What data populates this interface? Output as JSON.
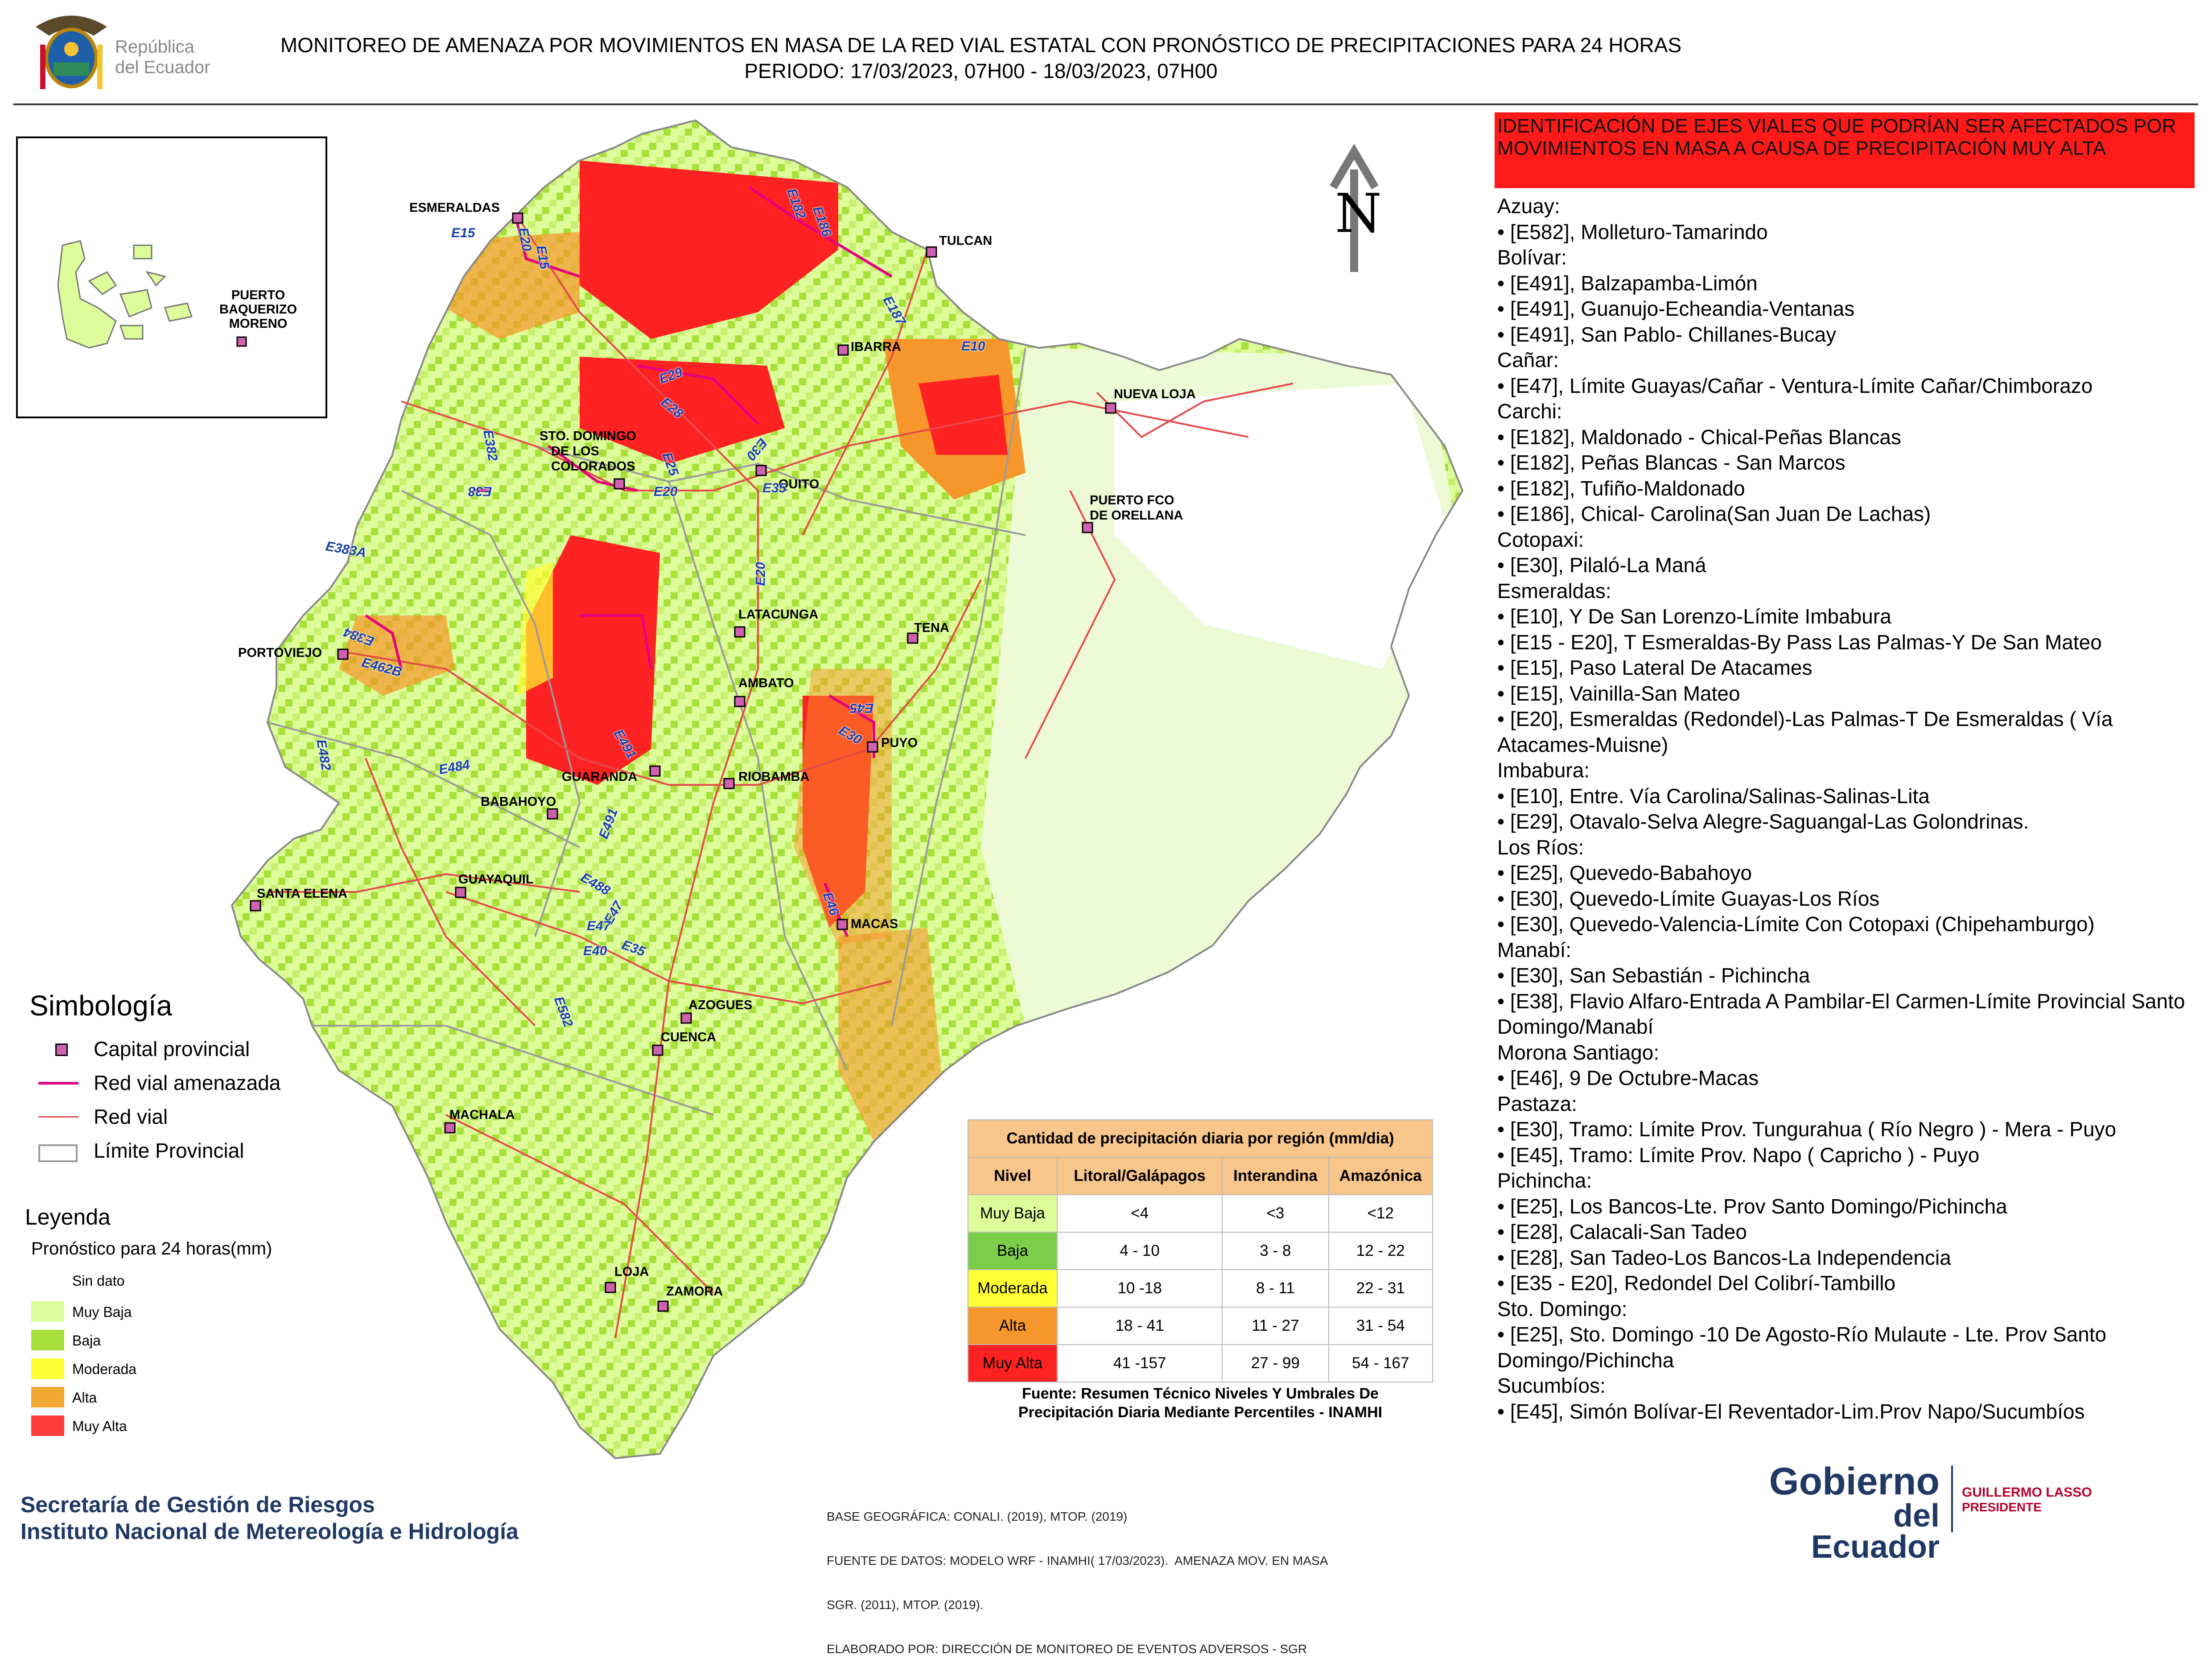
{
  "header": {
    "title_line1": "MONITOREO DE AMENAZA POR MOVIMIENTOS EN MASA DE LA RED VIAL  ESTATAL  CON PRONÓSTICO  DE  PRECIPITACIONES PARA 24 HORAS",
    "title_line2": "PERIODO: 17/03/2023, 07H00 - 18/03/2023, 07H00"
  },
  "logo": {
    "text_line1": "República",
    "text_line2": "del Ecuador"
  },
  "north_label": "N",
  "map": {
    "cities": [
      {
        "name": "ESMERALDAS"
      },
      {
        "name": "TULCAN"
      },
      {
        "name": "IBARRA"
      },
      {
        "name": "NUEVA LOJA"
      },
      {
        "name": "STO. DOMINGO"
      },
      {
        "name": "DE LOS"
      },
      {
        "name": "COLORADOS"
      },
      {
        "name": "QUITO"
      },
      {
        "name": "PUERTO FCO"
      },
      {
        "name": "DE ORELLANA"
      },
      {
        "name": "LATACUNGA"
      },
      {
        "name": "TENA"
      },
      {
        "name": "PORTOVIEJO"
      },
      {
        "name": "AMBATO"
      },
      {
        "name": "PUYO"
      },
      {
        "name": "GUARANDA"
      },
      {
        "name": "RIOBAMBA"
      },
      {
        "name": "BABAHOYO"
      },
      {
        "name": "SANTA ELENA"
      },
      {
        "name": "GUAYAQUIL"
      },
      {
        "name": "MACAS"
      },
      {
        "name": "AZOGUES"
      },
      {
        "name": "CUENCA"
      },
      {
        "name": "MACHALA"
      },
      {
        "name": "LOJA"
      },
      {
        "name": "ZAMORA"
      }
    ],
    "roads": [
      "E15",
      "E20",
      "E15",
      "E182",
      "E186",
      "E187",
      "E10",
      "E29",
      "E28",
      "E382",
      "E25",
      "E20",
      "E38",
      "E35",
      "E383A",
      "E30",
      "E20",
      "E384",
      "E462B",
      "E45",
      "E30",
      "E491",
      "E482",
      "E484",
      "E491",
      "E488",
      "E47",
      "E47",
      "E35",
      "E40",
      "E46",
      "E582"
    ],
    "inset_city": [
      "PUERTO",
      "BAQUERIZO",
      "MORENO"
    ]
  },
  "simbologia": {
    "title": "Simbología",
    "items": [
      {
        "label": "Capital provincial"
      },
      {
        "label": "Red vial amenazada",
        "color": "#e6007e"
      },
      {
        "label": "Red vial",
        "color": "#e34a4a"
      },
      {
        "label": "Límite Provincial"
      }
    ]
  },
  "leyenda": {
    "title": "Leyenda",
    "subtitle": "Pronóstico para 24 horas(mm)",
    "items": [
      {
        "label": "Sin dato",
        "color": "#ffffff"
      },
      {
        "label": " Muy Baja",
        "color": "#ddfc9a"
      },
      {
        "label": "Baja",
        "color": "#a8e03a"
      },
      {
        "label": "Moderada",
        "color": "#ffff33"
      },
      {
        "label": "Alta",
        "color": "#f0a830"
      },
      {
        "label": "Muy Alta",
        "color": "#ff3c3c"
      }
    ]
  },
  "table": {
    "title": "Cantidad de precipitación diaria por región (mm/dia)",
    "headers": [
      "Nivel",
      "Litoral/Galápagos",
      "Interandina",
      "Amazónica"
    ],
    "rows": [
      {
        "nivel": "Muy Baja",
        "color": "#ddfc9a",
        "litoral": "<4",
        "interandina": "<3",
        "amazonica": "<12"
      },
      {
        "nivel": "Baja",
        "color": "#7ccd4a",
        "litoral": "4 - 10",
        "interandina": "3 - 8",
        "amazonica": "12 - 22"
      },
      {
        "nivel": "Moderada",
        "color": "#ffff33",
        "litoral": "10 -18",
        "interandina": "8 - 11",
        "amazonica": "22 - 31"
      },
      {
        "nivel": "Alta",
        "color": "#f7962a",
        "litoral": "18 - 41",
        "interandina": "11 - 27",
        "amazonica": "31 - 54"
      },
      {
        "nivel": "Muy Alta",
        "color": "#ff2222",
        "litoral": "41 -157",
        "interandina": "27 - 99",
        "amazonica": "54 - 167"
      }
    ],
    "source_line1": "Fuente: Resumen Técnico Niveles Y Umbrales De",
    "source_line2": "Precipitación Diaria Mediante Percentiles - INAMHI"
  },
  "panel": {
    "title": "IDENTIFICACIÓN DE EJES VIALES QUE PODRÍAN SER AFECTADOS POR MOVIMIENTOS EN MASA A CAUSA DE PRECIPITACIÓN MUY ALTA",
    "provinces": [
      {
        "name": "Azuay:",
        "axes": [
          "• [E582], Molleturo-Tamarindo"
        ]
      },
      {
        "name": "Bolívar:",
        "axes": [
          "• [E491], Balzapamba-Limón",
          "• [E491], Guanujo-Echeandia-Ventanas",
          "• [E491], San Pablo- Chillanes-Bucay"
        ]
      },
      {
        "name": "Cañar:",
        "axes": [
          "• [E47], Límite Guayas/Cañar - Ventura-Límite Cañar/Chimborazo"
        ]
      },
      {
        "name": "Carchi:",
        "axes": [
          "• [E182], Maldonado - Chical-Peñas Blancas",
          "• [E182], Peñas Blancas - San Marcos",
          "• [E182], Tufiño-Maldonado",
          "• [E186], Chical- Carolina(San Juan De Lachas)"
        ]
      },
      {
        "name": "Cotopaxi:",
        "axes": [
          "• [E30], Pilaló-La Maná"
        ]
      },
      {
        "name": "Esmeraldas:",
        "axes": [
          "• [E10], Y De San Lorenzo-Límite Imbabura",
          "• [E15 - E20], T Esmeraldas-By Pass Las Palmas-Y De San Mateo",
          "• [E15], Paso Lateral De Atacames",
          "• [E15], Vainilla-San Mateo",
          "• [E20], Esmeraldas (Redondel)-Las Palmas-T De Esmeraldas ( Vía Atacames-Muisne)"
        ]
      },
      {
        "name": "Imbabura:",
        "axes": [
          "• [E10], Entre. Vía Carolina/Salinas-Salinas-Lita",
          "• [E29], Otavalo-Selva Alegre-Saguangal-Las Golondrinas."
        ]
      },
      {
        "name": "Los Ríos:",
        "axes": [
          "• [E25], Quevedo-Babahoyo",
          "• [E30], Quevedo-Límite Guayas-Los Ríos",
          "• [E30], Quevedo-Valencia-Límite Con Cotopaxi (Chipehamburgo)"
        ]
      },
      {
        "name": "Manabí:",
        "axes": [
          "• [E30], San Sebastián - Pichincha",
          "• [E38], Flavio Alfaro-Entrada A Pambilar-El Carmen-Límite Provincial Santo Domingo/Manabí"
        ]
      },
      {
        "name": "Morona Santiago:",
        "axes": [
          "• [E46], 9 De Octubre-Macas"
        ]
      },
      {
        "name": "Pastaza:",
        "axes": [
          "• [E30], Tramo: Límite Prov. Tungurahua ( Río Negro ) - Mera - Puyo",
          "• [E45], Tramo: Límite Prov. Napo ( Capricho ) - Puyo"
        ]
      },
      {
        "name": "Pichincha:",
        "axes": [
          "• [E25], Los Bancos-Lte. Prov Santo Domingo/Pichincha",
          "• [E28], Calacali-San Tadeo",
          "• [E28], San Tadeo-Los Bancos-La Independencia",
          "• [E35 - E20], Redondel Del Colibrí-Tambillo"
        ]
      },
      {
        "name": "Sto. Domingo:",
        "axes": [
          "• [E25], Sto. Domingo -10 De Agosto-Río Mulaute - Lte. Prov Santo Domingo/Pichincha"
        ]
      },
      {
        "name": "Sucumbíos:",
        "axes": [
          "• [E45], Simón Bolívar-El Reventador-Lim.Prov Napo/Sucumbíos"
        ]
      }
    ]
  },
  "footer": {
    "sgr_line1": "Secretaría de Gestión de Riesgos",
    "sgr_line2": "Instituto Nacional de Metereología e Hidrología",
    "base_line1": "BASE GEOGRÁFICA: CONALI. (2019), MTOP. (2019)",
    "base_line2": "FUENTE DE DATOS: MODELO WRF - INAMHI( 17/03/2023).  AMENAZA MOV. EN MASA",
    "base_line3": "SGR. (2011), MTOP. (2019).",
    "base_line4": "ELABORADO POR: DIRECCIÓN DE MONITOREO DE EVENTOS ADVERSOS - SGR",
    "gob_line1": "Gobierno",
    "gob_line2": "del Ecuador",
    "president_name": "GUILLERMO LASSO",
    "president_title": "PRESIDENTE"
  }
}
